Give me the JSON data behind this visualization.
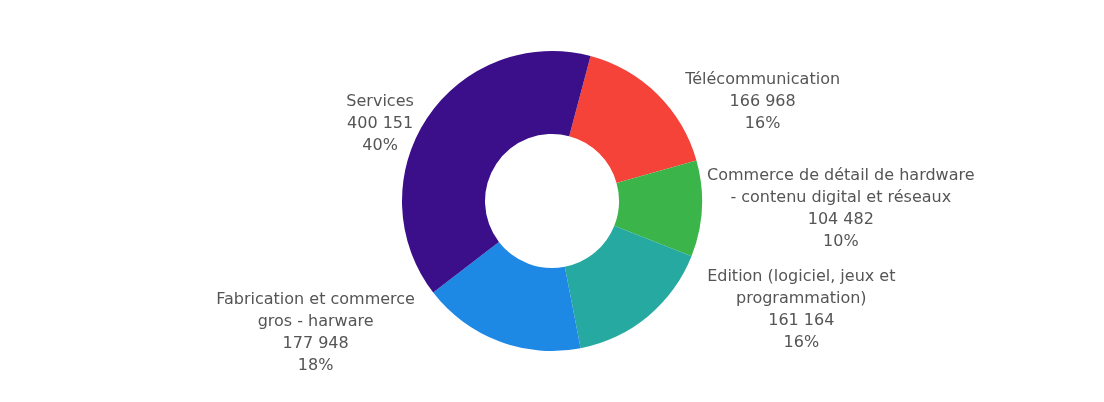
{
  "chart_data": {
    "type": "donut",
    "categories": [
      "Télécommunication",
      "Commerce de détail de hardware\n- contenu digital et réseaux",
      "Edition (logiciel, jeux et\nprogrammation)",
      "Fabrication et commerce\ngros - harware",
      "Services"
    ],
    "values": [
      166968,
      104482,
      161164,
      177948,
      400151
    ],
    "value_labels": [
      "166 968\n16%",
      "104 482\n10%",
      "161 164\n16%",
      "177 948\n18%",
      "400 151\n40%"
    ],
    "colors": [
      "#f5433a",
      "#3bb54a",
      "#26a9a0",
      "#1e88e5",
      "#3b0f8a"
    ]
  }
}
